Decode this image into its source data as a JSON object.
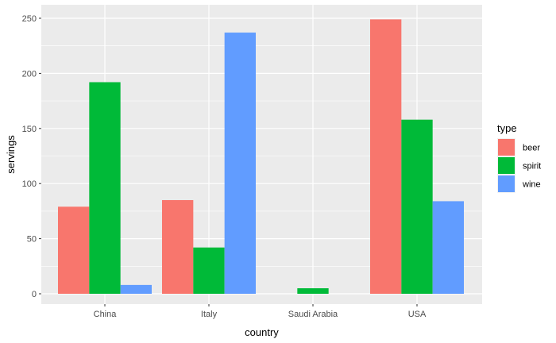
{
  "chart_data": {
    "type": "bar",
    "title": "",
    "xlabel": "country",
    "ylabel": "servings",
    "categories": [
      "China",
      "Italy",
      "Saudi Arabia",
      "USA"
    ],
    "ylim": [
      0,
      255
    ],
    "yticks": [
      0,
      50,
      100,
      150,
      200,
      250
    ],
    "grid": true,
    "legend": {
      "title": "type",
      "placement": "right"
    },
    "series": [
      {
        "name": "beer",
        "color": "#F8766D",
        "values": [
          79,
          85,
          0,
          249
        ]
      },
      {
        "name": "spirit",
        "color": "#00BA38",
        "values": [
          192,
          42,
          5,
          158
        ]
      },
      {
        "name": "wine",
        "color": "#619CFF",
        "values": [
          8,
          237,
          0,
          84
        ]
      }
    ]
  }
}
